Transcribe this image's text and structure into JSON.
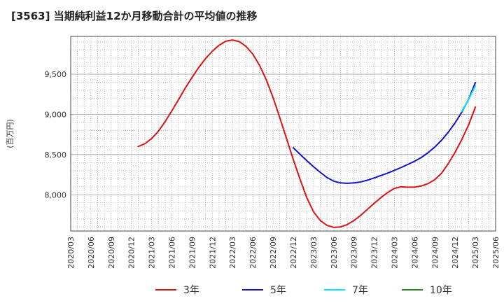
{
  "chart_data": {
    "type": "line",
    "title": "[3563]  当期純利益12か月移動合計の平均値の推移",
    "ylabel": "(百万円)",
    "xlabel": "",
    "ylim": [
      7550,
      9970
    ],
    "y_ticks": [
      8000,
      8500,
      9000,
      9500
    ],
    "y_tick_labels": [
      "8,000",
      "8,500",
      "9,000",
      "9,500"
    ],
    "x_tick_labels": [
      "2020/03",
      "2020/06",
      "2020/09",
      "2020/12",
      "2021/03",
      "2021/06",
      "2021/09",
      "2021/12",
      "2022/03",
      "2022/06",
      "2022/09",
      "2022/12",
      "2023/03",
      "2023/06",
      "2023/09",
      "2023/12",
      "2024/03",
      "2024/06",
      "2024/09",
      "2024/12",
      "2025/03",
      "2025/06"
    ],
    "grid": true,
    "legend_position": "bottom",
    "series": [
      {
        "name": "3年",
        "color": "#dd1111",
        "x": [
          "2021/01",
          "2021/02",
          "2021/03",
          "2021/04",
          "2021/05",
          "2021/06",
          "2021/07",
          "2021/08",
          "2021/09",
          "2021/10",
          "2021/11",
          "2021/12",
          "2022/01",
          "2022/02",
          "2022/03",
          "2022/04",
          "2022/05",
          "2022/06",
          "2022/07",
          "2022/08",
          "2022/09",
          "2022/10",
          "2022/11",
          "2022/12",
          "2023/01",
          "2023/02",
          "2023/03",
          "2023/04",
          "2023/05",
          "2023/06",
          "2023/07",
          "2023/08",
          "2023/09",
          "2023/10",
          "2023/11",
          "2023/12",
          "2024/01",
          "2024/02",
          "2024/03",
          "2024/04",
          "2024/05",
          "2024/06",
          "2024/07",
          "2024/08",
          "2024/09",
          "2024/10",
          "2024/11",
          "2024/12",
          "2025/01",
          "2025/02",
          "2025/03"
        ],
        "values": [
          8600,
          8635,
          8700,
          8790,
          8910,
          9045,
          9185,
          9330,
          9460,
          9585,
          9695,
          9785,
          9860,
          9910,
          9925,
          9905,
          9845,
          9750,
          9610,
          9430,
          9210,
          8960,
          8700,
          8440,
          8195,
          7965,
          7790,
          7680,
          7620,
          7595,
          7600,
          7630,
          7680,
          7745,
          7820,
          7895,
          7965,
          8030,
          8080,
          8100,
          8095,
          8095,
          8110,
          8140,
          8190,
          8270,
          8390,
          8530,
          8690,
          8870,
          9090
        ]
      },
      {
        "name": "5年",
        "color": "#1111cc",
        "x": [
          "2022/12",
          "2023/01",
          "2023/02",
          "2023/03",
          "2023/04",
          "2023/05",
          "2023/06",
          "2023/07",
          "2023/08",
          "2023/09",
          "2023/10",
          "2023/11",
          "2023/12",
          "2024/01",
          "2024/02",
          "2024/03",
          "2024/04",
          "2024/05",
          "2024/06",
          "2024/07",
          "2024/08",
          "2024/09",
          "2024/10",
          "2024/11",
          "2024/12",
          "2025/01",
          "2025/02",
          "2025/03"
        ],
        "values": [
          8585,
          8505,
          8425,
          8350,
          8280,
          8215,
          8170,
          8148,
          8143,
          8148,
          8160,
          8182,
          8210,
          8240,
          8270,
          8305,
          8340,
          8378,
          8418,
          8465,
          8525,
          8595,
          8680,
          8780,
          8895,
          9030,
          9190,
          9395
        ]
      },
      {
        "name": "7年",
        "color": "#00e5ff",
        "x": [
          "2025/01",
          "2025/02",
          "2025/03"
        ],
        "values": [
          9040,
          9185,
          9355
        ]
      },
      {
        "name": "10年",
        "color": "#228822",
        "x": [],
        "values": []
      }
    ]
  }
}
